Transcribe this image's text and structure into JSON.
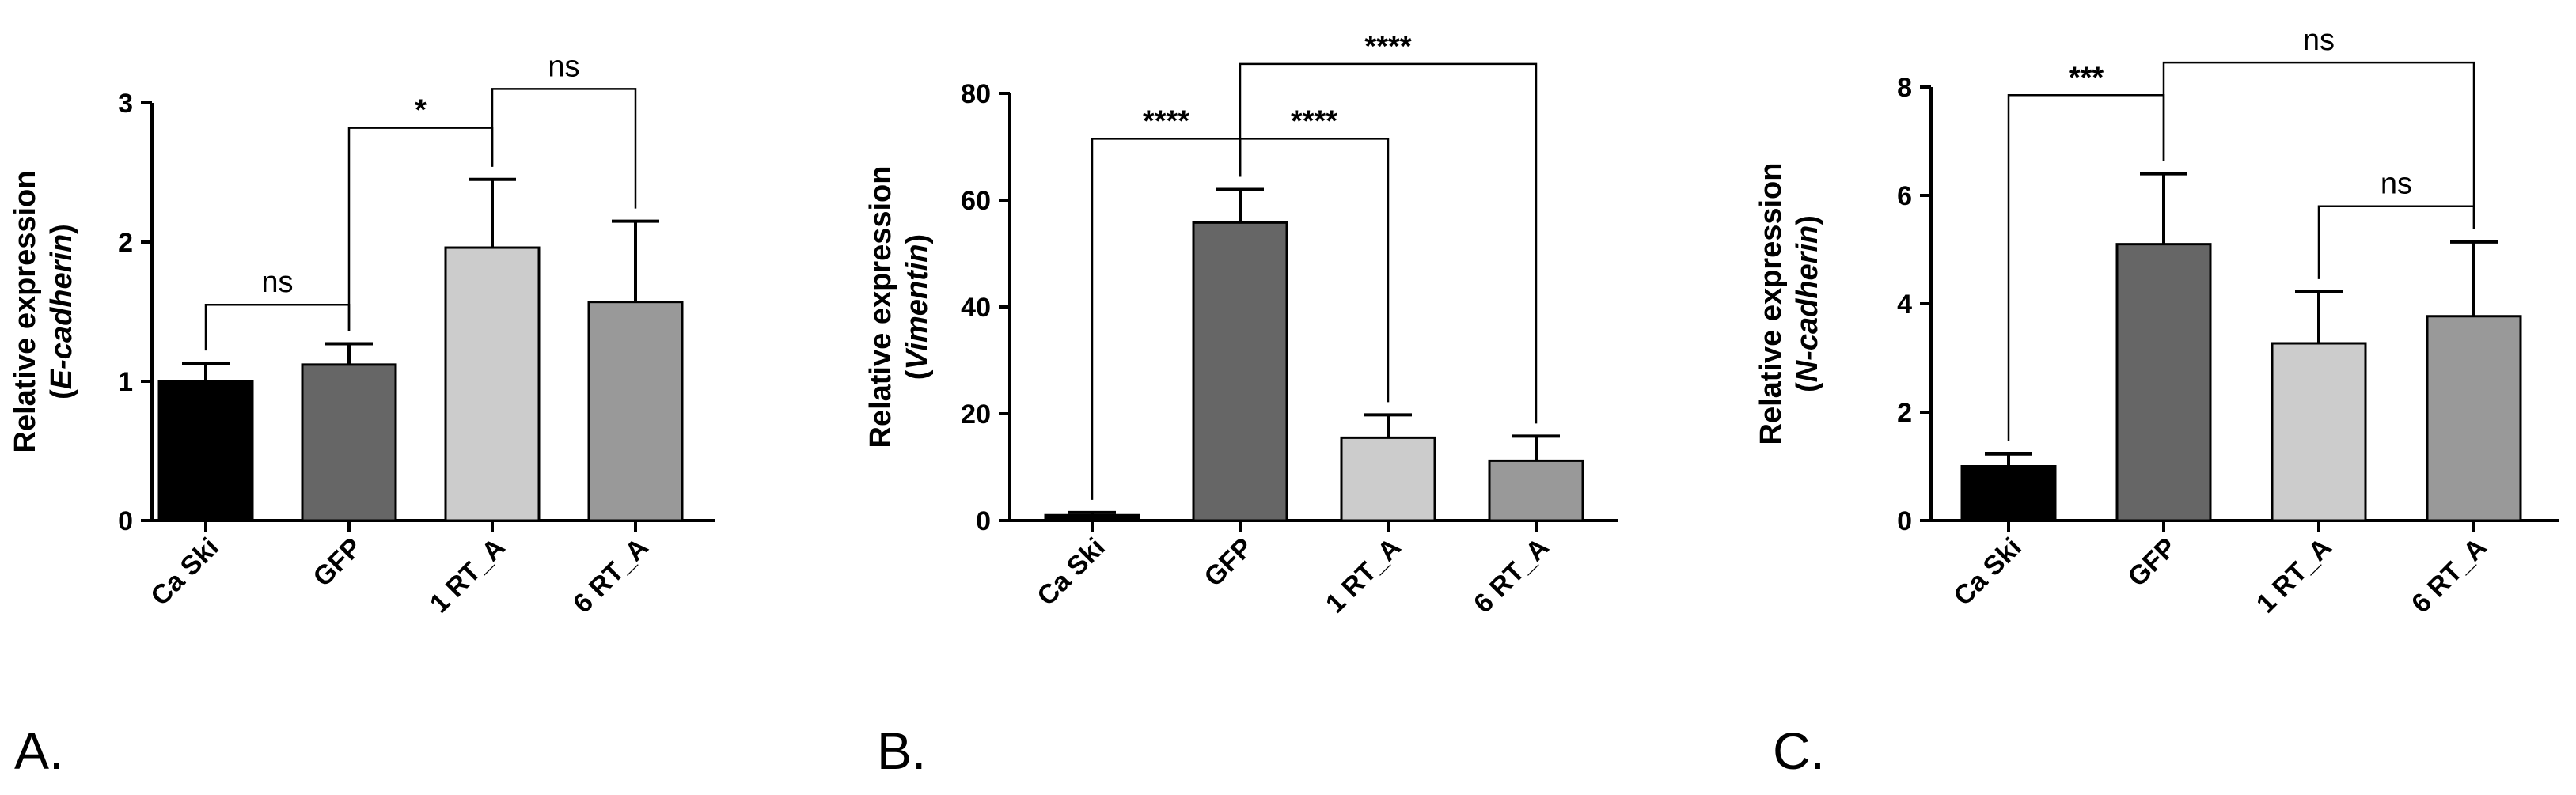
{
  "chart_data": [
    {
      "type": "bar",
      "panel_label": "A.",
      "ylabel": "Relative expression",
      "ylabel_gene": "E-cadherin",
      "categories": [
        "Ca Ski",
        "GFP",
        "1 RT_A",
        "6 RT_A"
      ],
      "values": [
        1.0,
        1.12,
        1.96,
        1.57
      ],
      "errors": [
        0.13,
        0.15,
        0.49,
        0.58
      ],
      "colors": [
        "#000000",
        "#666666",
        "#cccccc",
        "#999999"
      ],
      "ylim": [
        0,
        3
      ],
      "yticks": [
        0,
        1,
        2,
        3
      ],
      "significance": [
        {
          "from": 0,
          "to": 1,
          "label": "ns",
          "y": 1.55
        },
        {
          "from": 1,
          "to": 2,
          "label": "*",
          "y": 2.82
        },
        {
          "from": 2,
          "to": 3,
          "label": "ns",
          "y": 3.1
        }
      ]
    },
    {
      "type": "bar",
      "panel_label": "B.",
      "ylabel": "Relative expression",
      "ylabel_gene": "Vimentin",
      "categories": [
        "Ca Ski",
        "GFP",
        "1 RT_A",
        "6 RT_A"
      ],
      "values": [
        1.0,
        55.8,
        15.5,
        11.2
      ],
      "errors": [
        0.5,
        6.2,
        4.3,
        4.6
      ],
      "colors": [
        "#000000",
        "#666666",
        "#cccccc",
        "#999999"
      ],
      "ylim": [
        0,
        80
      ],
      "yticks": [
        0,
        20,
        40,
        60,
        80
      ],
      "significance": [
        {
          "from": 0,
          "to": 1,
          "label": "****",
          "y": 71.5
        },
        {
          "from": 1,
          "to": 2,
          "label": "****",
          "y": 71.5
        },
        {
          "from": 1,
          "to": 3,
          "label": "****",
          "y": 85.5
        }
      ]
    },
    {
      "type": "bar",
      "panel_label": "C.",
      "ylabel": "Relative expression",
      "ylabel_gene": "N-cadherin",
      "categories": [
        "Ca Ski",
        "GFP",
        "1 RT_A",
        "6 RT_A"
      ],
      "values": [
        1.0,
        5.1,
        3.27,
        3.77
      ],
      "errors": [
        0.23,
        1.3,
        0.95,
        1.37
      ],
      "colors": [
        "#000000",
        "#666666",
        "#cccccc",
        "#999999"
      ],
      "ylim": [
        0,
        8
      ],
      "yticks": [
        0,
        2,
        4,
        6,
        8
      ],
      "significance": [
        {
          "from": 0,
          "to": 1,
          "label": "***",
          "y": 7.85
        },
        {
          "from": 1,
          "to": 3,
          "label": "ns",
          "y": 8.45
        },
        {
          "from": 2,
          "to": 3,
          "label": "ns",
          "y": 5.8
        }
      ]
    }
  ]
}
